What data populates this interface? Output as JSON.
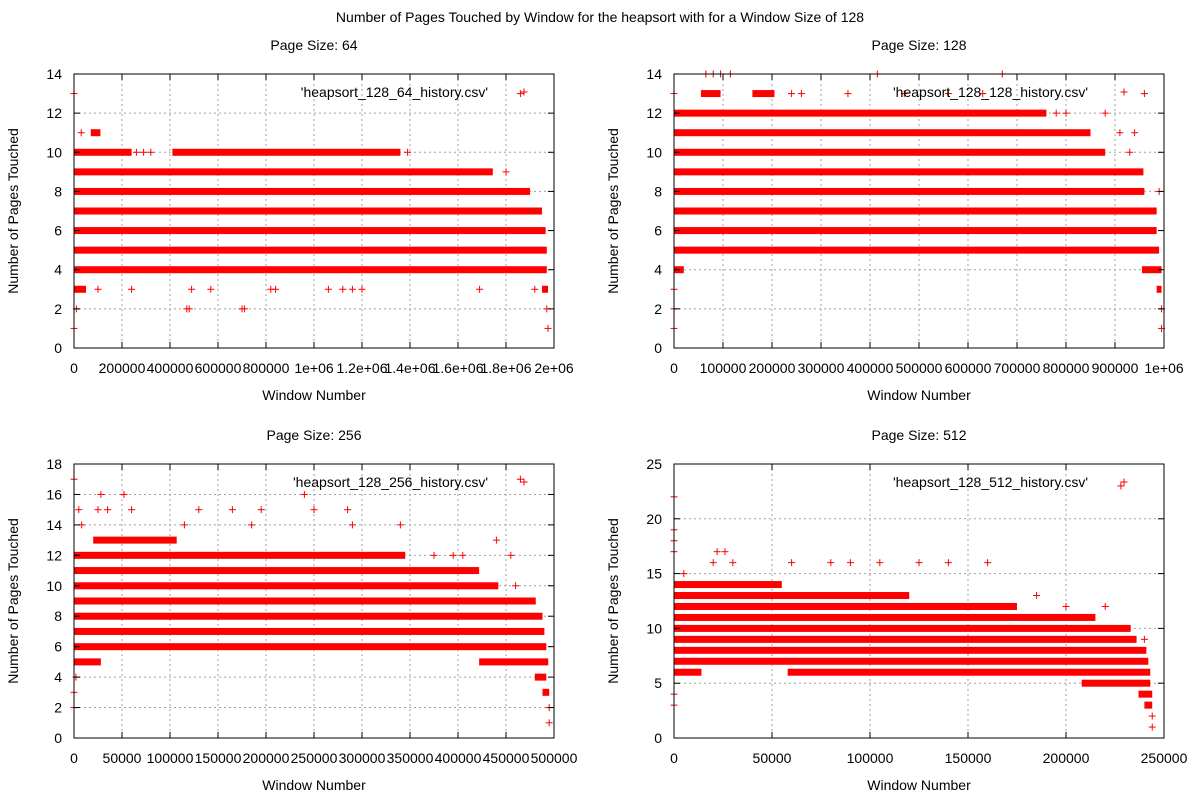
{
  "figure": {
    "title": "Number of Pages Touched by Window for the heapsort with for a Window Size of 128"
  },
  "colors": {
    "series": "#ff0000",
    "grid": "#a0a0a0"
  },
  "chart_data": [
    {
      "type": "scatter",
      "title": "Page Size: 64",
      "xlabel": "Window Number",
      "ylabel": "Number of Pages Touched",
      "legend": "'heapsort_128_64_history.csv'",
      "legend_position": "top-right",
      "grid": true,
      "xlim": [
        0,
        2000000
      ],
      "ylim": [
        0,
        14
      ],
      "xticks": [
        0,
        200000,
        400000,
        600000,
        800000,
        1000000,
        1200000,
        1400000,
        1600000,
        1800000,
        2000000
      ],
      "xtick_labels": [
        "0",
        "200000",
        "400000",
        "600000",
        "800000",
        "1e+06",
        "1.2e+06",
        "1.4e+06",
        "1.6e+06",
        "1.8e+06",
        "2e+06"
      ],
      "yticks": [
        0,
        2,
        4,
        6,
        8,
        10,
        12,
        14
      ],
      "ytick_labels": [
        "0",
        "2",
        "4",
        "6",
        "8",
        "10",
        "12",
        "14"
      ],
      "bands": [
        {
          "y": 4,
          "x": [
            0,
            1970000
          ]
        },
        {
          "y": 5,
          "x": [
            0,
            1970000
          ]
        },
        {
          "y": 6,
          "x": [
            0,
            1965000
          ]
        },
        {
          "y": 7,
          "x": [
            0,
            1950000
          ]
        },
        {
          "y": 8,
          "x": [
            0,
            1900000
          ]
        },
        {
          "y": 9,
          "x": [
            0,
            1745000
          ]
        },
        {
          "y": 10,
          "x": [
            0,
            240000
          ]
        },
        {
          "y": 10,
          "x": [
            410000,
            1360000
          ]
        },
        {
          "y": 3,
          "x": [
            0,
            50000
          ]
        },
        {
          "y": 3,
          "x": [
            1950000,
            1975000
          ]
        },
        {
          "y": 11,
          "x": [
            70000,
            110000
          ]
        }
      ],
      "points": [
        [
          0,
          13
        ],
        [
          0,
          1
        ],
        [
          10000,
          2
        ],
        [
          30000,
          11
        ],
        [
          100000,
          3
        ],
        [
          240000,
          3
        ],
        [
          260000,
          10
        ],
        [
          290000,
          10
        ],
        [
          320000,
          10
        ],
        [
          470000,
          2
        ],
        [
          480000,
          2
        ],
        [
          490000,
          3
        ],
        [
          570000,
          3
        ],
        [
          700000,
          2
        ],
        [
          710000,
          2
        ],
        [
          820000,
          3
        ],
        [
          840000,
          3
        ],
        [
          1060000,
          3
        ],
        [
          1120000,
          3
        ],
        [
          1160000,
          3
        ],
        [
          1200000,
          3
        ],
        [
          1390000,
          10
        ],
        [
          1690000,
          3
        ],
        [
          1780000,
          8
        ],
        [
          1800000,
          9
        ],
        [
          1860000,
          13
        ],
        [
          1920000,
          3
        ],
        [
          1970000,
          2
        ],
        [
          1975000,
          1
        ]
      ]
    },
    {
      "type": "scatter",
      "title": "Page Size: 128",
      "xlabel": "Window Number",
      "ylabel": "Number of Pages Touched",
      "legend": "'heapsort_128_128_history.csv'",
      "legend_position": "top-right",
      "grid": true,
      "xlim": [
        0,
        1000000
      ],
      "ylim": [
        0,
        14
      ],
      "xticks": [
        0,
        100000,
        200000,
        300000,
        400000,
        500000,
        600000,
        700000,
        800000,
        900000,
        1000000
      ],
      "xtick_labels": [
        "0",
        "100000",
        "200000",
        "300000",
        "400000",
        "500000",
        "600000",
        "700000",
        "800000",
        "900000",
        "1e+06"
      ],
      "yticks": [
        0,
        2,
        4,
        6,
        8,
        10,
        12,
        14
      ],
      "ytick_labels": [
        "0",
        "2",
        "4",
        "6",
        "8",
        "10",
        "12",
        "14"
      ],
      "bands": [
        {
          "y": 5,
          "x": [
            0,
            990000
          ]
        },
        {
          "y": 6,
          "x": [
            0,
            985000
          ]
        },
        {
          "y": 7,
          "x": [
            0,
            985000
          ]
        },
        {
          "y": 8,
          "x": [
            0,
            960000
          ]
        },
        {
          "y": 9,
          "x": [
            0,
            958000
          ]
        },
        {
          "y": 10,
          "x": [
            0,
            880000
          ]
        },
        {
          "y": 11,
          "x": [
            0,
            850000
          ]
        },
        {
          "y": 12,
          "x": [
            0,
            760000
          ]
        },
        {
          "y": 13,
          "x": [
            55000,
            95000
          ]
        },
        {
          "y": 13,
          "x": [
            160000,
            205000
          ]
        },
        {
          "y": 4,
          "x": [
            0,
            20000
          ]
        },
        {
          "y": 4,
          "x": [
            955000,
            995000
          ]
        },
        {
          "y": 3,
          "x": [
            985000,
            995000
          ]
        }
      ],
      "points": [
        [
          0,
          1
        ],
        [
          0,
          2
        ],
        [
          0,
          3
        ],
        [
          0,
          13
        ],
        [
          65000,
          14
        ],
        [
          80000,
          14
        ],
        [
          95000,
          14
        ],
        [
          115000,
          14
        ],
        [
          415000,
          14
        ],
        [
          670000,
          14
        ],
        [
          240000,
          13
        ],
        [
          260000,
          13
        ],
        [
          355000,
          13
        ],
        [
          470000,
          13
        ],
        [
          560000,
          13
        ],
        [
          630000,
          13
        ],
        [
          780000,
          12
        ],
        [
          800000,
          12
        ],
        [
          880000,
          12
        ],
        [
          910000,
          11
        ],
        [
          940000,
          11
        ],
        [
          960000,
          13
        ],
        [
          930000,
          10
        ],
        [
          990000,
          8
        ],
        [
          995000,
          2
        ],
        [
          995000,
          1
        ]
      ]
    },
    {
      "type": "scatter",
      "title": "Page Size: 256",
      "xlabel": "Window Number",
      "ylabel": "Number of Pages Touched",
      "legend": "'heapsort_128_256_history.csv'",
      "legend_position": "top-right",
      "grid": true,
      "xlim": [
        0,
        500000
      ],
      "ylim": [
        0,
        18
      ],
      "xticks": [
        0,
        50000,
        100000,
        150000,
        200000,
        250000,
        300000,
        350000,
        400000,
        450000,
        500000
      ],
      "xtick_labels": [
        "0",
        "50000",
        "100000",
        "150000",
        "200000",
        "250000",
        "300000",
        "350000",
        "400000",
        "450000",
        "500000"
      ],
      "yticks": [
        0,
        2,
        4,
        6,
        8,
        10,
        12,
        14,
        16,
        18
      ],
      "ytick_labels": [
        "0",
        "2",
        "4",
        "6",
        "8",
        "10",
        "12",
        "14",
        "16",
        "18"
      ],
      "bands": [
        {
          "y": 6,
          "x": [
            0,
            492000
          ]
        },
        {
          "y": 7,
          "x": [
            0,
            490000
          ]
        },
        {
          "y": 8,
          "x": [
            0,
            488000
          ]
        },
        {
          "y": 9,
          "x": [
            0,
            481000
          ]
        },
        {
          "y": 10,
          "x": [
            0,
            442000
          ]
        },
        {
          "y": 11,
          "x": [
            0,
            422000
          ]
        },
        {
          "y": 12,
          "x": [
            0,
            345000
          ]
        },
        {
          "y": 13,
          "x": [
            20000,
            107000
          ]
        },
        {
          "y": 5,
          "x": [
            0,
            28000
          ]
        },
        {
          "y": 5,
          "x": [
            422000,
            494000
          ]
        },
        {
          "y": 4,
          "x": [
            480000,
            492000
          ]
        },
        {
          "y": 3,
          "x": [
            488000,
            495000
          ]
        }
      ],
      "points": [
        [
          0,
          17
        ],
        [
          0,
          2
        ],
        [
          0,
          3
        ],
        [
          2000,
          4
        ],
        [
          5000,
          15
        ],
        [
          8000,
          14
        ],
        [
          25000,
          15
        ],
        [
          28000,
          16
        ],
        [
          35000,
          15
        ],
        [
          52000,
          16
        ],
        [
          60000,
          15
        ],
        [
          115000,
          14
        ],
        [
          130000,
          15
        ],
        [
          165000,
          15
        ],
        [
          185000,
          14
        ],
        [
          195000,
          15
        ],
        [
          240000,
          16
        ],
        [
          250000,
          15
        ],
        [
          285000,
          15
        ],
        [
          290000,
          14
        ],
        [
          340000,
          14
        ],
        [
          375000,
          12
        ],
        [
          395000,
          12
        ],
        [
          405000,
          12
        ],
        [
          440000,
          13
        ],
        [
          455000,
          12
        ],
        [
          460000,
          10
        ],
        [
          465000,
          17
        ],
        [
          495000,
          2
        ],
        [
          495000,
          1
        ]
      ]
    },
    {
      "type": "scatter",
      "title": "Page Size: 512",
      "xlabel": "Window Number",
      "ylabel": "Number of Pages Touched",
      "legend": "'heapsort_128_512_history.csv'",
      "legend_position": "top-right",
      "grid": true,
      "xlim": [
        0,
        250000
      ],
      "ylim": [
        0,
        25
      ],
      "xticks": [
        0,
        50000,
        100000,
        150000,
        200000,
        250000
      ],
      "xtick_labels": [
        "0",
        "50000",
        "100000",
        "150000",
        "200000",
        "250000"
      ],
      "yticks": [
        0,
        5,
        10,
        15,
        20,
        25
      ],
      "ytick_labels": [
        "0",
        "5",
        "10",
        "15",
        "20",
        "25"
      ],
      "bands": [
        {
          "y": 7,
          "x": [
            0,
            242000
          ]
        },
        {
          "y": 8,
          "x": [
            0,
            241000
          ]
        },
        {
          "y": 9,
          "x": [
            0,
            236000
          ]
        },
        {
          "y": 10,
          "x": [
            0,
            233000
          ]
        },
        {
          "y": 11,
          "x": [
            0,
            215000
          ]
        },
        {
          "y": 12,
          "x": [
            0,
            175000
          ]
        },
        {
          "y": 13,
          "x": [
            0,
            120000
          ]
        },
        {
          "y": 14,
          "x": [
            0,
            55000
          ]
        },
        {
          "y": 6,
          "x": [
            0,
            14000
          ]
        },
        {
          "y": 6,
          "x": [
            58000,
            243000
          ]
        },
        {
          "y": 5,
          "x": [
            208000,
            243000
          ]
        },
        {
          "y": 4,
          "x": [
            237000,
            244000
          ]
        },
        {
          "y": 3,
          "x": [
            240000,
            244000
          ]
        }
      ],
      "points": [
        [
          0,
          22
        ],
        [
          0,
          19
        ],
        [
          0,
          18
        ],
        [
          0,
          17
        ],
        [
          0,
          3
        ],
        [
          0,
          4
        ],
        [
          5000,
          15
        ],
        [
          20000,
          16
        ],
        [
          22000,
          17
        ],
        [
          26000,
          17
        ],
        [
          30000,
          16
        ],
        [
          60000,
          16
        ],
        [
          80000,
          16
        ],
        [
          90000,
          16
        ],
        [
          105000,
          16
        ],
        [
          125000,
          16
        ],
        [
          140000,
          16
        ],
        [
          160000,
          16
        ],
        [
          185000,
          13
        ],
        [
          200000,
          12
        ],
        [
          210000,
          11
        ],
        [
          220000,
          12
        ],
        [
          228000,
          23
        ],
        [
          230000,
          10
        ],
        [
          240000,
          9
        ],
        [
          244000,
          2
        ],
        [
          244000,
          1
        ]
      ]
    }
  ]
}
